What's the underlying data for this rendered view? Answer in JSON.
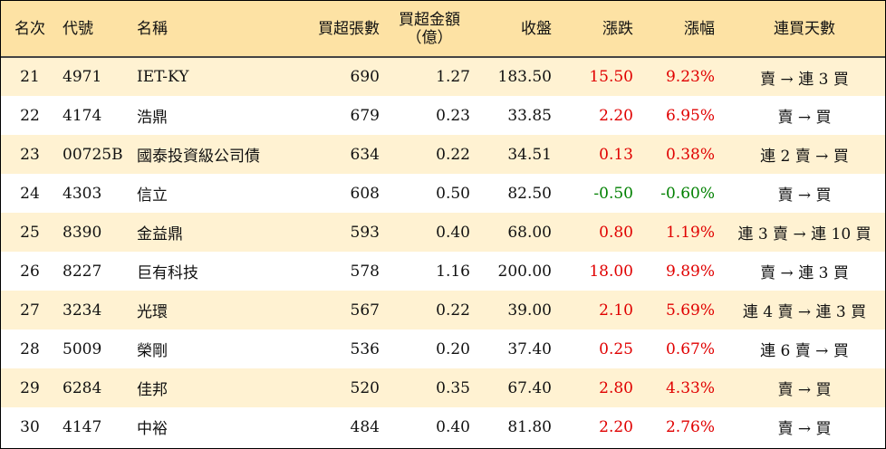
{
  "headers": {
    "rank": "名次",
    "code": "代號",
    "name": "名稱",
    "net_buy_lots": "買超張數",
    "net_buy_amount_line1": "買超金額",
    "net_buy_amount_line2": "（億）",
    "close": "收盤",
    "change": "漲跌",
    "change_pct": "漲幅",
    "buy_days": "連買天數"
  },
  "rows": [
    {
      "rank": "21",
      "code": "4971",
      "name": "IET-KY",
      "lots": "690",
      "amount": "1.27",
      "close": "183.50",
      "change": "15.50",
      "pct": "9.23%",
      "trend": "up",
      "days": "賣 → 連 3 買"
    },
    {
      "rank": "22",
      "code": "4174",
      "name": "浩鼎",
      "lots": "679",
      "amount": "0.23",
      "close": "33.85",
      "change": "2.20",
      "pct": "6.95%",
      "trend": "up",
      "days": "賣 → 買"
    },
    {
      "rank": "23",
      "code": "00725B",
      "name": "國泰投資級公司債",
      "lots": "634",
      "amount": "0.22",
      "close": "34.51",
      "change": "0.13",
      "pct": "0.38%",
      "trend": "up",
      "days": "連 2 賣 → 買"
    },
    {
      "rank": "24",
      "code": "4303",
      "name": "信立",
      "lots": "608",
      "amount": "0.50",
      "close": "82.50",
      "change": "-0.50",
      "pct": "-0.60%",
      "trend": "down",
      "days": "賣 → 買"
    },
    {
      "rank": "25",
      "code": "8390",
      "name": "金益鼎",
      "lots": "593",
      "amount": "0.40",
      "close": "68.00",
      "change": "0.80",
      "pct": "1.19%",
      "trend": "up",
      "days": "連 3 賣 → 連 10 買"
    },
    {
      "rank": "26",
      "code": "8227",
      "name": "巨有科技",
      "lots": "578",
      "amount": "1.16",
      "close": "200.00",
      "change": "18.00",
      "pct": "9.89%",
      "trend": "up",
      "days": "賣 → 連 3 買"
    },
    {
      "rank": "27",
      "code": "3234",
      "name": "光環",
      "lots": "567",
      "amount": "0.22",
      "close": "39.00",
      "change": "2.10",
      "pct": "5.69%",
      "trend": "up",
      "days": "連 4 賣 → 連 3 買"
    },
    {
      "rank": "28",
      "code": "5009",
      "name": "榮剛",
      "lots": "536",
      "amount": "0.20",
      "close": "37.40",
      "change": "0.25",
      "pct": "0.67%",
      "trend": "up",
      "days": "連 6 賣 → 買"
    },
    {
      "rank": "29",
      "code": "6284",
      "name": "佳邦",
      "lots": "520",
      "amount": "0.35",
      "close": "67.40",
      "change": "2.80",
      "pct": "4.33%",
      "trend": "up",
      "days": "賣 → 買"
    },
    {
      "rank": "30",
      "code": "4147",
      "name": "中裕",
      "lots": "484",
      "amount": "0.40",
      "close": "81.80",
      "change": "2.20",
      "pct": "2.76%",
      "trend": "up",
      "days": "賣 → 買"
    }
  ],
  "colors": {
    "header_bg": "#fde2a4",
    "odd_row_bg": "#fff2d2",
    "even_row_bg": "#ffffff",
    "up": "#e00000",
    "down": "#008000"
  }
}
